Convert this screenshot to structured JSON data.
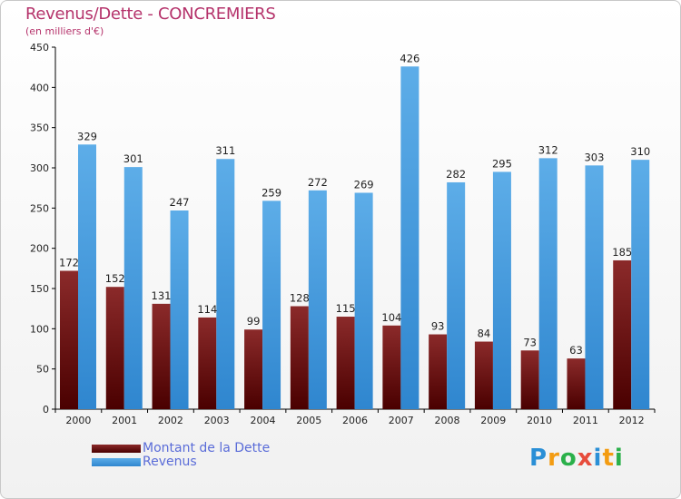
{
  "header": {
    "title": "Revenus/Dette - CONCREMIERS",
    "subtitle": "(en milliers d'€)"
  },
  "logo": {
    "text": "Proxiti",
    "letters": [
      "P",
      "r",
      "o",
      "x",
      "i",
      "t",
      "i"
    ],
    "colors": [
      "#2a8fd6",
      "#f39c12",
      "#2ab04a",
      "#e74c3c",
      "#2a8fd6",
      "#f39c12",
      "#2ab04a"
    ]
  },
  "chart_data": {
    "type": "bar",
    "title": "Revenus/Dette - CONCREMIERS",
    "subtitle": "(en milliers d'€)",
    "categories": [
      "2000",
      "2001",
      "2002",
      "2003",
      "2004",
      "2005",
      "2006",
      "2007",
      "2008",
      "2009",
      "2010",
      "2011",
      "2012"
    ],
    "series": [
      {
        "name": "Montant de la Dette",
        "values": [
          172,
          152,
          131,
          114,
          99,
          128,
          115,
          104,
          93,
          84,
          73,
          63,
          185
        ],
        "color_top": "#8b2a2a",
        "color_bottom": "#4a0000"
      },
      {
        "name": "Revenus",
        "values": [
          329,
          301,
          247,
          311,
          259,
          272,
          269,
          426,
          282,
          295,
          312,
          303,
          310
        ],
        "color_top": "#5dade8",
        "color_bottom": "#2f86cf"
      }
    ],
    "ylim": [
      0,
      450
    ],
    "yticks": [
      "0",
      "50",
      "100",
      "150",
      "200",
      "250",
      "300",
      "350",
      "400",
      "450"
    ],
    "grid": false,
    "legend_position": "bottom-left"
  }
}
